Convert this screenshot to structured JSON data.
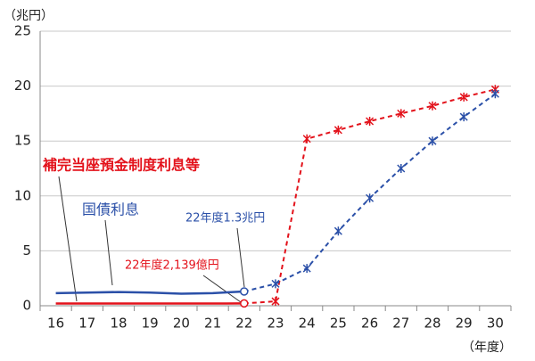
{
  "chart_data": {
    "type": "line",
    "unit_label": "（兆円）",
    "x_label": "（年度）",
    "categories": [
      "16",
      "17",
      "18",
      "19",
      "20",
      "21",
      "22",
      "23",
      "24",
      "25",
      "26",
      "27",
      "28",
      "29",
      "30"
    ],
    "ylim": [
      0,
      25
    ],
    "yticks": [
      0,
      5,
      10,
      15,
      20,
      25
    ],
    "grid": true,
    "series": [
      {
        "name": "補完当座預金制度利息等",
        "color": "#e3121b",
        "values": [
          0.2,
          0.2,
          0.2,
          0.2,
          0.2,
          0.2,
          0.2139,
          0.4,
          15.2,
          16.0,
          16.8,
          17.5,
          18.2,
          19.0,
          19.7
        ],
        "segment_styles": [
          "solid",
          "solid",
          "solid",
          "solid",
          "solid",
          "solid",
          "solid",
          "dashed",
          "dashed",
          "dashed",
          "dashed",
          "dashed",
          "dashed",
          "dashed",
          "dashed"
        ],
        "markers": [
          null,
          null,
          null,
          null,
          null,
          null,
          "circle",
          "x",
          "x",
          "x",
          "x",
          "x",
          "x",
          "x",
          "x"
        ]
      },
      {
        "name": "国債利息",
        "color": "#2b50a8",
        "values": [
          1.15,
          1.2,
          1.25,
          1.2,
          1.1,
          1.15,
          1.3,
          2.0,
          3.4,
          6.8,
          9.8,
          12.5,
          15.0,
          17.2,
          19.3
        ],
        "segment_styles": [
          "solid",
          "solid",
          "solid",
          "solid",
          "solid",
          "solid",
          "solid",
          "dashed",
          "dashed",
          "dashed",
          "dashed",
          "dashed",
          "dashed",
          "dashed",
          "dashed"
        ],
        "markers": [
          null,
          null,
          null,
          null,
          null,
          null,
          "circle",
          "x",
          "x",
          "x",
          "x",
          "x",
          "x",
          "x",
          "x"
        ]
      }
    ],
    "annotations": [
      "22年度1.3兆円",
      "22年度2,139億円"
    ]
  }
}
